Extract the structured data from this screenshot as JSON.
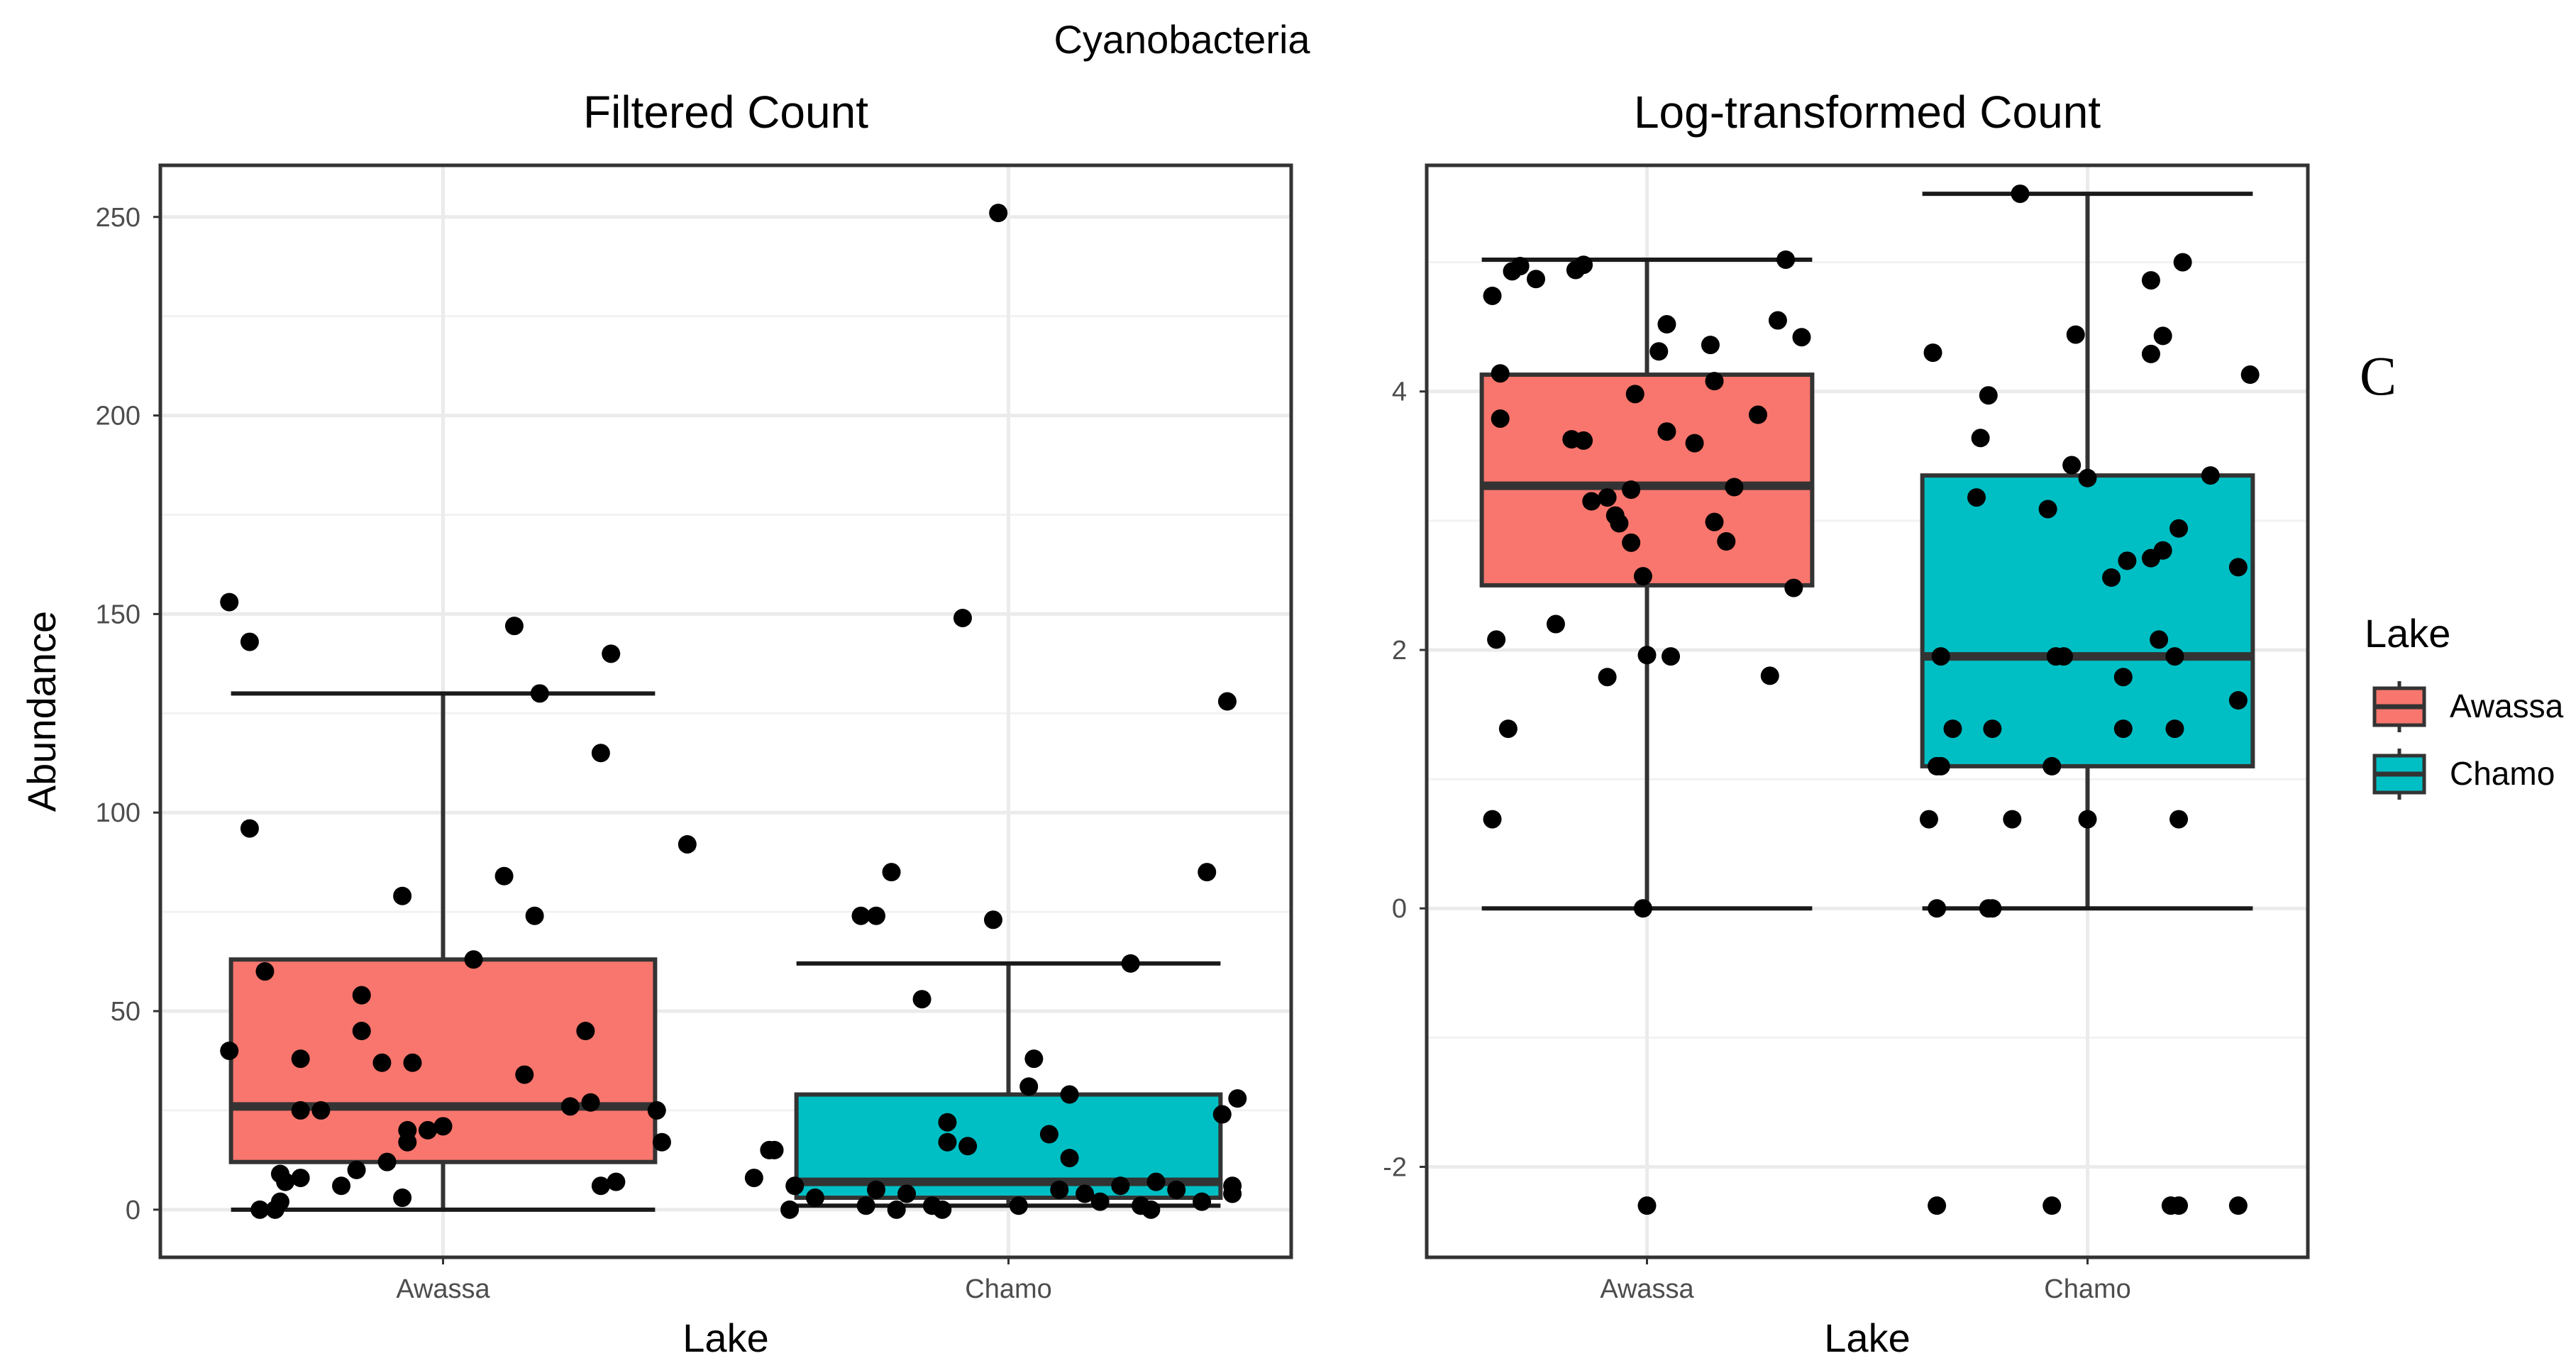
{
  "figure": {
    "title": "Cyanobacteria",
    "panel_label": "C"
  },
  "legend": {
    "title": "Lake",
    "items": [
      {
        "label": "Awassa",
        "color": "#F8766D"
      },
      {
        "label": "Chamo",
        "color": "#00BFC4"
      }
    ]
  },
  "chart_data": [
    {
      "type": "box",
      "title": "Filtered Count",
      "xlabel": "Lake",
      "ylabel": "Abundance",
      "categories": [
        "Awassa",
        "Chamo"
      ],
      "ylim": [
        -12,
        263
      ],
      "yticks": [
        0,
        50,
        100,
        150,
        200,
        250
      ],
      "grid": true,
      "boxes": [
        {
          "category": "Awassa",
          "fill": "#F8766D",
          "whisker_low": 0,
          "q1": 12,
          "median": 26,
          "q3": 63,
          "whisker_high": 130
        },
        {
          "category": "Chamo",
          "fill": "#00BFC4",
          "whisker_low": 1,
          "q1": 3,
          "median": 7,
          "q3": 29,
          "whisker_high": 62
        }
      ],
      "points": [
        {
          "category": "Awassa",
          "values": [
            153,
            143,
            147,
            140,
            130,
            115,
            96,
            92,
            84,
            79,
            74,
            63,
            60,
            54,
            45,
            45,
            40,
            38,
            37,
            37,
            34,
            27,
            26,
            25,
            25,
            25,
            21,
            20,
            20,
            17,
            17,
            12,
            10,
            9,
            8,
            7,
            7,
            6,
            6,
            3,
            2,
            0,
            0
          ],
          "jitter": [
            -0.42,
            -0.38,
            0.14,
            0.33,
            0.19,
            0.31,
            -0.38,
            0.48,
            0.12,
            -0.08,
            0.18,
            0.06,
            -0.35,
            -0.16,
            0.28,
            -0.16,
            -0.42,
            -0.28,
            -0.12,
            -0.06,
            0.16,
            0.29,
            0.25,
            -0.28,
            -0.24,
            0.42,
            0.0,
            -0.03,
            -0.07,
            0.43,
            -0.07,
            -0.11,
            -0.17,
            -0.32,
            -0.28,
            -0.31,
            0.34,
            -0.2,
            0.31,
            -0.08,
            -0.32,
            -0.36,
            -0.33
          ]
        },
        {
          "category": "Chamo",
          "values": [
            251,
            149,
            128,
            85,
            85,
            74,
            74,
            73,
            62,
            53,
            38,
            31,
            29,
            28,
            24,
            22,
            19,
            17,
            16,
            15,
            15,
            13,
            8,
            7,
            6,
            6,
            6,
            5,
            5,
            5,
            4,
            4,
            4,
            3,
            2,
            2,
            1,
            1,
            1,
            1,
            0,
            0,
            0,
            0
          ],
          "jitter": [
            -0.02,
            -0.09,
            0.43,
            0.39,
            -0.23,
            -0.29,
            -0.26,
            -0.03,
            0.24,
            -0.17,
            0.05,
            0.04,
            0.12,
            0.45,
            0.42,
            -0.12,
            0.08,
            -0.12,
            -0.08,
            -0.47,
            -0.46,
            0.12,
            -0.5,
            0.29,
            -0.42,
            0.44,
            0.22,
            0.1,
            0.33,
            -0.26,
            0.44,
            -0.2,
            0.15,
            -0.38,
            0.38,
            0.18,
            -0.28,
            0.26,
            -0.15,
            0.02,
            -0.22,
            -0.43,
            -0.13,
            0.28
          ]
        }
      ]
    },
    {
      "type": "box",
      "title": "Log-transformed Count",
      "xlabel": "Lake",
      "ylabel": "",
      "categories": [
        "Awassa",
        "Chamo"
      ],
      "ylim": [
        -2.7,
        5.75
      ],
      "yticks": [
        -2,
        0,
        2,
        4
      ],
      "grid": true,
      "boxes": [
        {
          "category": "Awassa",
          "fill": "#F8766D",
          "whisker_low": 0,
          "q1": 2.5,
          "median": 3.27,
          "q3": 4.13,
          "whisker_high": 5.02
        },
        {
          "category": "Chamo",
          "fill": "#00BFC4",
          "whisker_low": 0,
          "q1": 1.1,
          "median": 1.95,
          "q3": 3.35,
          "whisker_high": 5.53
        }
      ],
      "points": [
        {
          "category": "Awassa",
          "values": [
            5.02,
            4.98,
            4.97,
            4.94,
            4.93,
            4.87,
            4.74,
            4.55,
            4.52,
            4.42,
            4.36,
            4.31,
            4.14,
            4.08,
            3.98,
            3.82,
            3.79,
            3.69,
            3.63,
            3.62,
            3.6,
            3.26,
            3.24,
            3.18,
            3.15,
            3.04,
            2.99,
            2.98,
            2.84,
            2.83,
            2.57,
            2.48,
            2.2,
            2.08,
            1.96,
            1.95,
            1.8,
            1.79,
            1.39,
            0.69,
            0.0,
            -2.3
          ],
          "jitter": [
            0.35,
            -0.16,
            -0.32,
            -0.18,
            -0.34,
            -0.28,
            -0.39,
            0.33,
            0.05,
            0.39,
            0.16,
            0.03,
            -0.37,
            0.17,
            -0.03,
            0.28,
            -0.37,
            0.05,
            -0.19,
            -0.16,
            0.12,
            0.22,
            -0.04,
            -0.1,
            -0.14,
            -0.08,
            0.17,
            -0.07,
            0.2,
            -0.04,
            -0.01,
            0.37,
            -0.23,
            -0.38,
            0.0,
            0.06,
            0.31,
            -0.1,
            -0.35,
            -0.39,
            -0.01,
            0.0
          ],
          "xjitter_note": ""
        },
        {
          "category": "Chamo",
          "values": [
            5.53,
            5.0,
            4.86,
            4.44,
            4.43,
            4.3,
            4.29,
            4.13,
            3.97,
            3.64,
            3.43,
            3.35,
            3.33,
            3.18,
            3.09,
            2.94,
            2.77,
            2.71,
            2.69,
            2.64,
            2.56,
            2.08,
            1.95,
            1.95,
            1.95,
            1.95,
            1.79,
            1.61,
            1.39,
            1.39,
            1.39,
            1.39,
            1.1,
            1.1,
            1.1,
            0.69,
            0.69,
            0.69,
            0.69,
            0.0,
            0.0,
            0.0,
            -2.3,
            -2.3,
            -2.3,
            -2.3,
            -2.3
          ],
          "jitter": [
            -0.17,
            0.24,
            0.16,
            -0.03,
            0.19,
            -0.39,
            0.16,
            0.41,
            -0.25,
            -0.27,
            -0.04,
            0.31,
            0.0,
            -0.28,
            -0.1,
            0.23,
            0.19,
            0.16,
            0.1,
            0.38,
            0.06,
            0.18,
            -0.37,
            0.22,
            -0.08,
            -0.06,
            0.09,
            0.38,
            -0.34,
            0.09,
            -0.24,
            0.22,
            -0.37,
            -0.38,
            -0.09,
            -0.4,
            -0.19,
            0.0,
            0.23,
            -0.38,
            -0.25,
            -0.24,
            -0.38,
            -0.09,
            0.23,
            0.21,
            0.38
          ]
        }
      ]
    }
  ]
}
